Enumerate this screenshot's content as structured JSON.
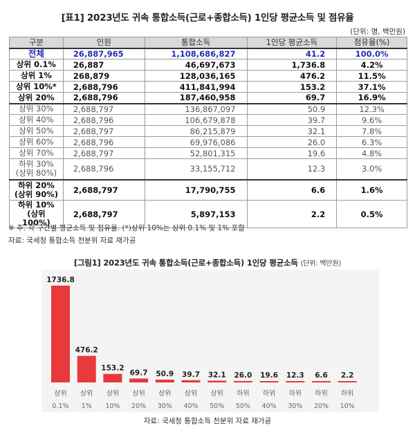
{
  "table": {
    "title": "[표1] 2023년도 귀속 통합소득(근로+종합소득) 1인당 평균소득 및 점유율",
    "unit": "(단위: 명, 백만원)",
    "headers": [
      "구분",
      "인원",
      "통합소득",
      "1인당 평균소득",
      "점유율(%)"
    ],
    "rows": [
      {
        "label": [
          "전체"
        ],
        "people": "26,887,965",
        "income": "1,108,686,827",
        "avg": "41.2",
        "share": "100.0%",
        "style": "total"
      },
      {
        "label": [
          "상위 0.1%"
        ],
        "people": "26,887",
        "income": "46,697,673",
        "avg": "1,736.8",
        "share": "4.2%",
        "style": "bold"
      },
      {
        "label": [
          "상위 1%"
        ],
        "people": "268,879",
        "income": "128,036,165",
        "avg": "476.2",
        "share": "11.5%",
        "style": "bold"
      },
      {
        "label": [
          "상위 10%*"
        ],
        "people": "2,688,796",
        "income": "411,841,994",
        "avg": "153.2",
        "share": "37.1%",
        "style": "bold"
      },
      {
        "label": [
          "상위 20%"
        ],
        "people": "2,688,796",
        "income": "187,460,958",
        "avg": "69.7",
        "share": "16.9%",
        "style": "bold thick"
      },
      {
        "label": [
          "상위 30%"
        ],
        "people": "2,688,797",
        "income": "136,867,097",
        "avg": "50.9",
        "share": "12.3%",
        "style": "norm"
      },
      {
        "label": [
          "상위 40%"
        ],
        "people": "2,688,796",
        "income": "106,679,878",
        "avg": "39.7",
        "share": "9.6%",
        "style": "norm"
      },
      {
        "label": [
          "상위 50%"
        ],
        "people": "2,688,797",
        "income": "86,215,879",
        "avg": "32.1",
        "share": "7.8%",
        "style": "norm"
      },
      {
        "label": [
          "상위 60%"
        ],
        "people": "2,688,796",
        "income": "69,976,086",
        "avg": "26.0",
        "share": "6.3%",
        "style": "norm"
      },
      {
        "label": [
          "상위 70%"
        ],
        "people": "2,688,797",
        "income": "52,801,315",
        "avg": "19.6",
        "share": "4.8%",
        "style": "norm"
      },
      {
        "label": [
          "하위 30%",
          "(상위 80%)"
        ],
        "people": "2,688,796",
        "income": "33,155,712",
        "avg": "12.3",
        "share": "3.0%",
        "style": "norm tall thick"
      },
      {
        "label": [
          "하위 20%",
          "(상위 90%)"
        ],
        "people": "2,688,797",
        "income": "17,790,755",
        "avg": "6.6",
        "share": "1.6%",
        "style": "bold tall"
      },
      {
        "label": [
          "하위 10%",
          "(상위 100%)"
        ],
        "people": "2,688,797",
        "income": "5,897,153",
        "avg": "2.2",
        "share": "0.5%",
        "style": "bold tall"
      }
    ],
    "note": "※ 주. 각 구간별 평균소득 및 점유율. (*)상위 10%는 상위 0.1% 및 1% 포함",
    "source": "자료: 국세청 통합소득 천분위 자료 재가공"
  },
  "figure": {
    "title": "[그림1] 2023년도 귀속 통합소득(근로+종합소득) 1인당 평균소득",
    "unit": "(단위: 백만원)",
    "source": "자료: 국세청 통합소득 천분위 자료 재가공"
  },
  "chart_data": {
    "type": "bar",
    "title": "[그림1] 2023년도 귀속 통합소득(근로+종합소득) 1인당 평균소득",
    "unit": "(단위: 백만원)",
    "categories": [
      [
        "상위",
        "0.1%"
      ],
      [
        "상위",
        "1%"
      ],
      [
        "상위",
        "10%"
      ],
      [
        "상위",
        "20%"
      ],
      [
        "상위",
        "30%"
      ],
      [
        "상위",
        "40%"
      ],
      [
        "상위",
        "50%"
      ],
      [
        "하위",
        "50%"
      ],
      [
        "하위",
        "40%"
      ],
      [
        "하위",
        "30%"
      ],
      [
        "하위",
        "20%"
      ],
      [
        "하위",
        "10%"
      ]
    ],
    "values": [
      1736.8,
      476.2,
      153.2,
      69.7,
      50.9,
      39.7,
      32.1,
      26.0,
      19.6,
      12.3,
      6.6,
      2.2
    ],
    "value_labels": [
      "1736.8",
      "476.2",
      "153.2",
      "69.7",
      "50.9",
      "39.7",
      "32.1",
      "26.0",
      "19.6",
      "12.3",
      "6.6",
      "2.2"
    ],
    "ylim": [
      0,
      1736.8
    ],
    "grid": false,
    "bar_color": "#e8393c"
  }
}
